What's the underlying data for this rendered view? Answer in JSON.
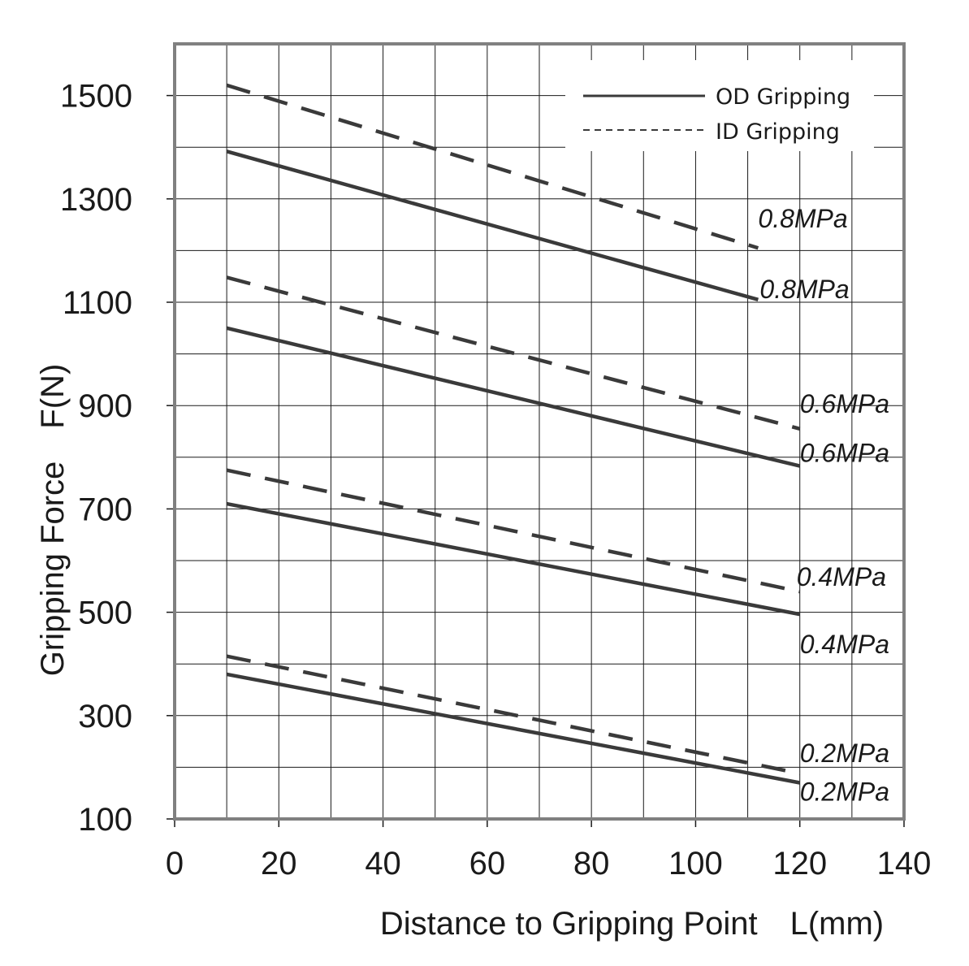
{
  "chart_data": {
    "type": "line",
    "xlabel": "Distance to Gripping Point　L(mm)",
    "ylabel": "Gripping Force　F(N)",
    "xlim": [
      0,
      140
    ],
    "ylim": [
      100,
      1600
    ],
    "xticks": [
      0,
      20,
      40,
      60,
      80,
      100,
      120,
      140
    ],
    "yticks": [
      100,
      300,
      500,
      700,
      900,
      1100,
      1300,
      1500
    ],
    "grid": true,
    "legend": {
      "placement": "top-right",
      "entries": [
        {
          "label": "OD Gripping",
          "style": "solid"
        },
        {
          "label": "ID Gripping",
          "style": "dashed"
        }
      ]
    },
    "series": [
      {
        "group": "ID Gripping",
        "style": "dashed",
        "label": "0.8MPa",
        "x": [
          10,
          112
        ],
        "y": [
          1520,
          1205
        ]
      },
      {
        "group": "OD Gripping",
        "style": "solid",
        "label": "0.8MPa",
        "x": [
          10,
          112
        ],
        "y": [
          1392,
          1105
        ]
      },
      {
        "group": "ID Gripping",
        "style": "dashed",
        "label": "0.6MPa",
        "x": [
          10,
          120
        ],
        "y": [
          1148,
          855
        ]
      },
      {
        "group": "OD Gripping",
        "style": "solid",
        "label": "0.6MPa",
        "x": [
          10,
          120
        ],
        "y": [
          1050,
          783
        ]
      },
      {
        "group": "ID Gripping",
        "style": "dashed",
        "label": "0.4MPa",
        "x": [
          10,
          120
        ],
        "y": [
          775,
          540
        ]
      },
      {
        "group": "OD Gripping",
        "style": "solid",
        "label": "0.4MPa",
        "x": [
          10,
          120
        ],
        "y": [
          710,
          496
        ]
      },
      {
        "group": "ID Gripping",
        "style": "dashed",
        "label": "0.2MPa",
        "x": [
          10,
          120
        ],
        "y": [
          415,
          188
        ]
      },
      {
        "group": "OD Gripping",
        "style": "solid",
        "label": "0.2MPa",
        "x": [
          10,
          120
        ],
        "y": [
          380,
          170
        ]
      }
    ]
  },
  "colors": {
    "line": "#3a3a3a",
    "grid": "#1a1a1a",
    "frame": "#808080",
    "text": "#1a1a1a"
  }
}
